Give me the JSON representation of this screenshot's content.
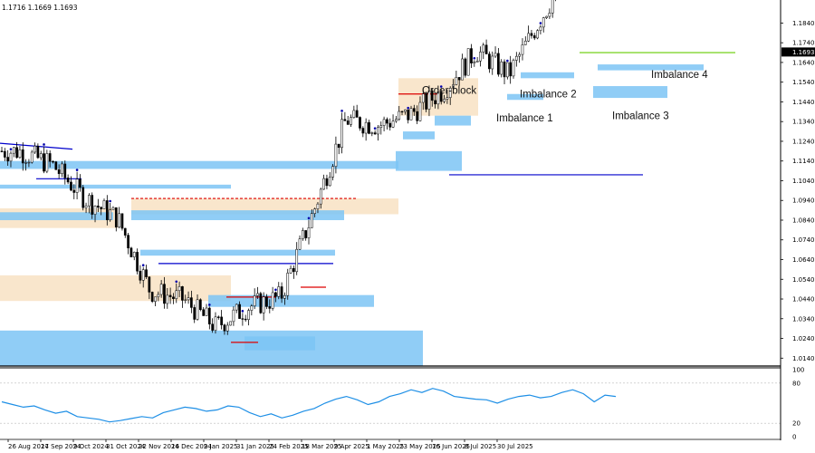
{
  "chart_data": {
    "type": "candlestick",
    "ohlc_readout": "1.1716 1.1669 1.1693",
    "last_price_label": "1.1693",
    "colors": {
      "imbalance": "#7cc4f4",
      "order_block": "#f8e3c6",
      "candle": "#000000",
      "support_line": "#0000cc",
      "resistance_line": "#dd0000",
      "target_line": "#66cc00",
      "oscillator": "#1e8fe6",
      "swing_marker": "#0000aa"
    },
    "price_axis": {
      "ylim": [
        1.01,
        1.192
      ],
      "ticks": [
        "1.1840",
        "1.1740",
        "1.1640",
        "1.1540",
        "1.1440",
        "1.1340",
        "1.1240",
        "1.1140",
        "1.1040",
        "1.0940",
        "1.0840",
        "1.0740",
        "1.0640",
        "1.0540",
        "1.0440",
        "1.0340",
        "1.0240",
        "1.0140"
      ]
    },
    "time_axis": {
      "labels": [
        "26 Aug 2024",
        "17 Sep 2024",
        "9 Oct 2024",
        "31 Oct 2024",
        "22 Nov 2024",
        "16 Dec 2024",
        "9 Jan 2025",
        "31 Jan 2025",
        "24 Feb 2025",
        "18 Mar 2025",
        "9 Apr 2025",
        "1 May 2025",
        "23 May 2025",
        "16 Jun 2025",
        "8 Jul 2025",
        "30 Jul 2025"
      ]
    },
    "price_series": {
      "anchor_dates": [
        "26 Aug 2024",
        "17 Sep 2024",
        "9 Oct 2024",
        "31 Oct 2024",
        "22 Nov 2024",
        "16 Dec 2024",
        "9 Jan 2025",
        "31 Jan 2025",
        "24 Feb 2025",
        "18 Mar 2025",
        "9 Apr 2025",
        "1 May 2025",
        "23 May 2025",
        "16 Jun 2025",
        "8 Jul 2025",
        "30 Jul 2025"
      ],
      "close_at_anchor": [
        1.119,
        1.112,
        1.095,
        1.085,
        1.048,
        1.044,
        1.03,
        1.04,
        1.045,
        1.088,
        1.135,
        1.132,
        1.138,
        1.15,
        1.17,
        1.158
      ]
    },
    "zones": [
      {
        "label": "Order-block",
        "kind": "order_block"
      },
      {
        "label": "Imbalance 1",
        "kind": "imbalance"
      },
      {
        "label": "Imbalance 2",
        "kind": "imbalance"
      },
      {
        "label": "Imbalance 3",
        "kind": "imbalance"
      },
      {
        "label": "Imbalance 4",
        "kind": "imbalance"
      }
    ],
    "key_levels": [
      {
        "price": 1.107,
        "kind": "support"
      },
      {
        "price": 1.169,
        "kind": "target"
      },
      {
        "price": 1.062,
        "kind": "support"
      },
      {
        "price": 1.095,
        "kind": "resistance"
      }
    ],
    "oscillator": {
      "ticks": [
        "100",
        "80",
        "20",
        "0"
      ],
      "ylim": [
        0,
        100
      ],
      "values": [
        52,
        48,
        44,
        46,
        40,
        35,
        38,
        30,
        28,
        26,
        22,
        24,
        27,
        30,
        28,
        36,
        40,
        44,
        42,
        38,
        40,
        46,
        44,
        36,
        30,
        34,
        28,
        32,
        38,
        42,
        50,
        56,
        60,
        55,
        48,
        52,
        60,
        64,
        70,
        66,
        72,
        68,
        60,
        58,
        56,
        55,
        50,
        56,
        60,
        62,
        58,
        60,
        66,
        70,
        64,
        52,
        62,
        60
      ]
    }
  }
}
